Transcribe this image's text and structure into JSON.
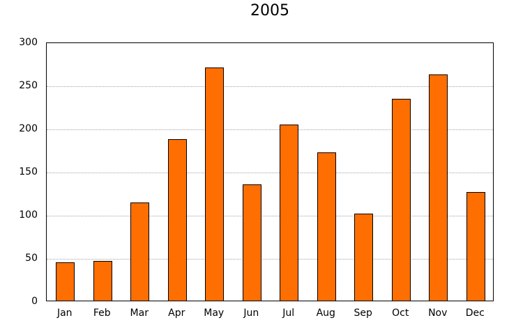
{
  "chart_data": {
    "type": "bar",
    "title": "2005",
    "categories": [
      "Jan",
      "Feb",
      "Mar",
      "Apr",
      "May",
      "Jun",
      "Jul",
      "Aug",
      "Sep",
      "Oct",
      "Nov",
      "Dec"
    ],
    "values": [
      44,
      46,
      114,
      187,
      270,
      135,
      204,
      172,
      101,
      234,
      262,
      126
    ],
    "xlabel": "",
    "ylabel": "",
    "ylim": [
      0,
      300
    ],
    "ytick_step": 50,
    "yticks": [
      0,
      50,
      100,
      150,
      200,
      250,
      300
    ],
    "grid": "horizontal-dotted",
    "legend": "none",
    "bar_color": "#ff6e00",
    "bar_border_color": "#000000",
    "gridline_color": "#a3a3a3",
    "axis_color": "#000000"
  }
}
